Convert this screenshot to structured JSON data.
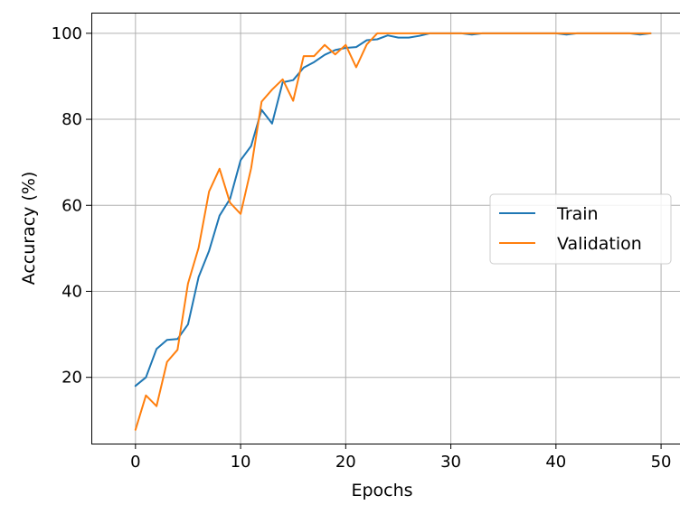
{
  "chart_data": {
    "type": "line",
    "title": "",
    "xlabel": "Epochs",
    "ylabel": "Accuracy (%)",
    "xlim": [
      -4.2,
      51.8
    ],
    "ylim": [
      4.6,
      104.8
    ],
    "xticks": [
      0,
      10,
      20,
      30,
      40,
      50
    ],
    "yticks": [
      20,
      40,
      60,
      80,
      100
    ],
    "grid": true,
    "legend_position": "center-right",
    "x": [
      0,
      1,
      2,
      3,
      4,
      5,
      6,
      7,
      8,
      9,
      10,
      11,
      12,
      13,
      14,
      15,
      16,
      17,
      18,
      19,
      20,
      21,
      22,
      23,
      24,
      25,
      26,
      27,
      28,
      29,
      30,
      31,
      32,
      33,
      34,
      35,
      36,
      37,
      38,
      39,
      40,
      41,
      42,
      43,
      44,
      45,
      46,
      47,
      48,
      49
    ],
    "series": [
      {
        "name": "Train",
        "color": "#1f77b4",
        "values": [
          18.0,
          20.0,
          26.6,
          28.7,
          28.9,
          32.3,
          43.3,
          49.4,
          57.6,
          61.5,
          70.5,
          73.8,
          82.2,
          79.0,
          88.6,
          89.1,
          92.0,
          93.3,
          95.0,
          96.1,
          96.6,
          96.8,
          98.4,
          98.6,
          99.5,
          99.0,
          99.0,
          99.4,
          100,
          100,
          100,
          100,
          99.7,
          100,
          100,
          100,
          100,
          100,
          100,
          100,
          100,
          99.7,
          100,
          100,
          100,
          100,
          100,
          100,
          99.7,
          100
        ]
      },
      {
        "name": "Validation",
        "color": "#ff7f0e",
        "values": [
          7.8,
          15.8,
          13.3,
          23.6,
          26.4,
          41.8,
          50.1,
          63.2,
          68.5,
          60.6,
          58.0,
          68.6,
          84.1,
          86.9,
          89.3,
          84.3,
          94.7,
          94.7,
          97.3,
          95.1,
          97.3,
          92.1,
          97.4,
          100,
          100,
          100,
          100,
          100,
          100,
          100,
          100,
          100,
          100,
          100,
          100,
          100,
          100,
          100,
          100,
          100,
          100,
          100,
          100,
          100,
          100,
          100,
          100,
          100,
          100,
          100
        ]
      }
    ]
  }
}
